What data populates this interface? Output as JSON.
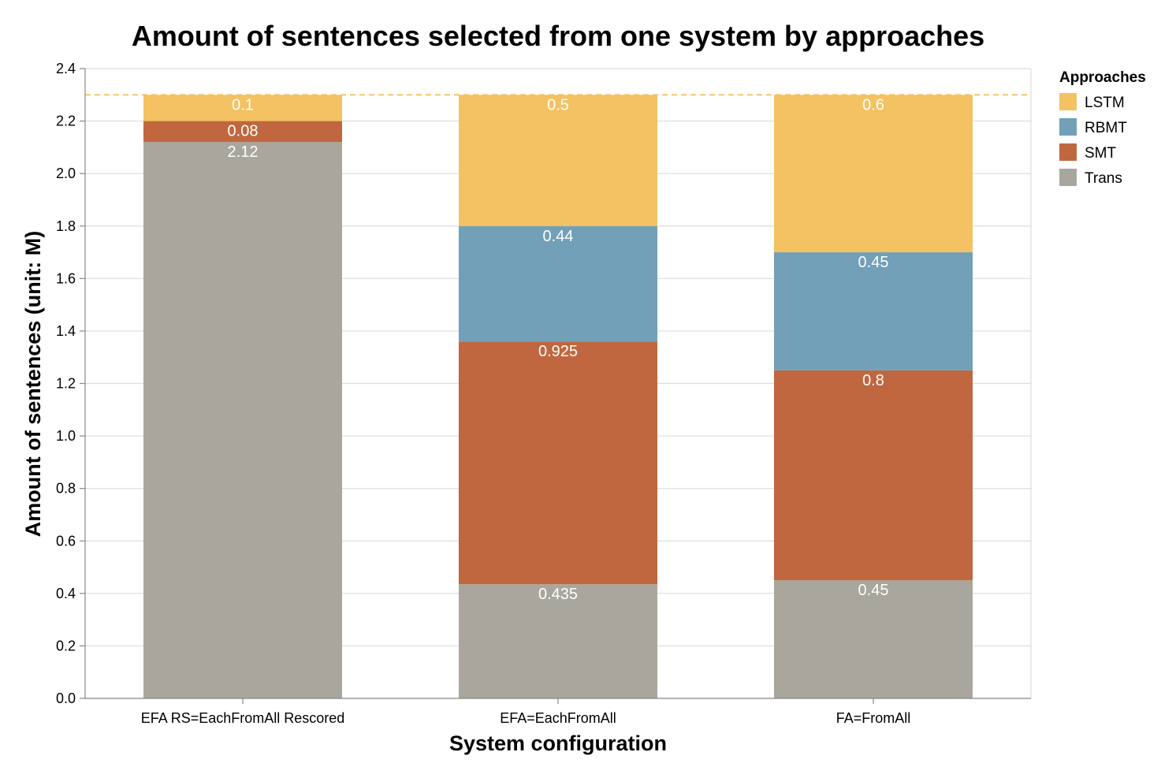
{
  "chart_data": {
    "type": "bar",
    "stacked": true,
    "title": "Amount of sentences selected from one system by approaches",
    "xlabel": "System configuration",
    "ylabel": "Amount of sentences (unit: M)",
    "ylim": [
      0,
      2.4
    ],
    "yticks": [
      "0.0",
      "0.2",
      "0.4",
      "0.6",
      "0.8",
      "1.0",
      "1.2",
      "1.4",
      "1.6",
      "1.8",
      "2.0",
      "2.2",
      "2.4"
    ],
    "grid": true,
    "reference_line": 2.3,
    "categories": [
      "EFA RS=EachFromAll Rescored",
      "EFA=EachFromAll",
      "FA=FromAll"
    ],
    "series": [
      {
        "name": "Trans",
        "color": "#a9a69d",
        "values": [
          2.12,
          0.435,
          0.45
        ],
        "labels": [
          "2.12",
          "0.435",
          "0.45"
        ]
      },
      {
        "name": "SMT",
        "color": "#c0673f",
        "values": [
          0.08,
          0.925,
          0.8
        ],
        "labels": [
          "0.08",
          "0.925",
          "0.8"
        ]
      },
      {
        "name": "RBMT",
        "color": "#71a0b8",
        "values": [
          0,
          0.44,
          0.45
        ],
        "labels": [
          "",
          "0.44",
          "0.45"
        ]
      },
      {
        "name": "LSTM",
        "color": "#f4c262",
        "values": [
          0.1,
          0.5,
          0.6
        ],
        "labels": [
          "0.1",
          "0.5",
          "0.6"
        ]
      }
    ],
    "legend": {
      "title": "Approaches",
      "position": "right",
      "order": [
        "LSTM",
        "RBMT",
        "SMT",
        "Trans"
      ]
    },
    "colors": {
      "grid": "#dddddd",
      "axis": "#888888",
      "reference_line": "#f4c262"
    }
  }
}
